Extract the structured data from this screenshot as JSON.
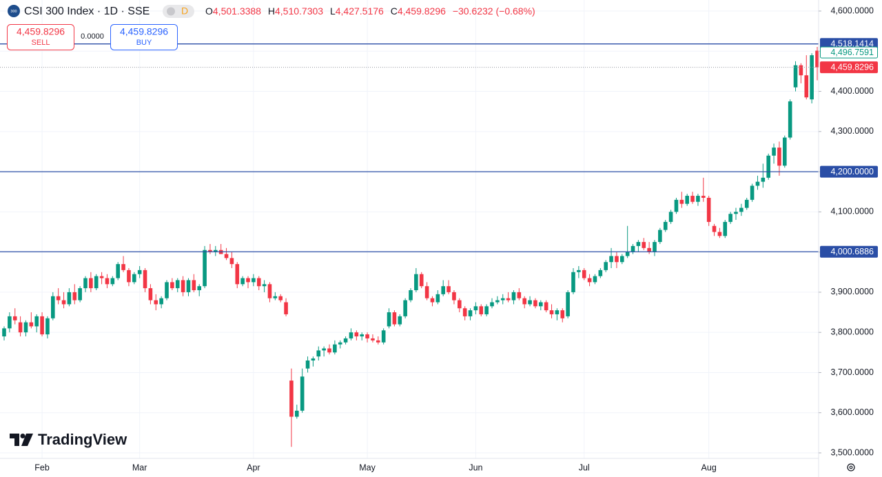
{
  "header": {
    "icon": "300",
    "symbol": "CSI 300 Index · 1D · SSE",
    "badge": "D",
    "o_key": "O",
    "o_val": "4,501.3388",
    "h_key": "H",
    "h_val": "4,510.7303",
    "l_key": "L",
    "l_val": "4,427.5176",
    "c_key": "C",
    "c_val": "4,459.8296",
    "change": "−30.6232 (−0.68%)"
  },
  "trade_panel": {
    "sell_price": "4,459.8296",
    "sell": "SELL",
    "spread": "0.0000",
    "buy_price": "4,459.8296",
    "buy": "BUY"
  },
  "watermark": "TradingView",
  "chart_data": {
    "type": "candlestick",
    "up_color": "#089981",
    "down_color": "#f23645",
    "line_color": "#2a4ea6",
    "ylim": [
      3500,
      4600
    ],
    "yticks": [
      {
        "value": 4600,
        "label": "4,600.0000"
      },
      {
        "value": 4500,
        "label": "4,500.0000"
      },
      {
        "value": 4400,
        "label": "4,400.0000"
      },
      {
        "value": 4300,
        "label": "4,300.0000"
      },
      {
        "value": 4200,
        "label": "4,200.0000"
      },
      {
        "value": 4100,
        "label": "4,100.0000"
      },
      {
        "value": 4000,
        "label": "4,000.0000"
      },
      {
        "value": 3900,
        "label": "3,900.0000"
      },
      {
        "value": 3800,
        "label": "3,800.0000"
      },
      {
        "value": 3700,
        "label": "3,700.0000"
      },
      {
        "value": 3600,
        "label": "3,600.0000"
      },
      {
        "value": 3500,
        "label": "3,500.0000"
      }
    ],
    "grid": true,
    "hlines": [
      {
        "value": 4518.1414,
        "label": "4,518.1414"
      },
      {
        "value": 4200,
        "label": "4,200.0000"
      },
      {
        "value": 4000.6886,
        "label": "4,000.6886"
      }
    ],
    "price_tags": [
      {
        "value": 4496.7591,
        "label": "4,496.7591",
        "style": "outline"
      },
      {
        "value": 4459.8296,
        "label": "4,459.8296",
        "style": "filled"
      }
    ],
    "categories": [
      null,
      null,
      null,
      null,
      null,
      null,
      null,
      "Feb",
      null,
      null,
      null,
      null,
      null,
      null,
      null,
      null,
      null,
      null,
      null,
      null,
      null,
      null,
      null,
      null,
      null,
      "Mar",
      null,
      null,
      null,
      null,
      null,
      null,
      null,
      null,
      null,
      null,
      null,
      null,
      null,
      null,
      null,
      null,
      null,
      null,
      null,
      null,
      "Apr",
      null,
      null,
      null,
      null,
      null,
      null,
      null,
      null,
      null,
      null,
      null,
      null,
      null,
      null,
      null,
      null,
      null,
      null,
      null,
      null,
      "May",
      null,
      null,
      null,
      null,
      null,
      null,
      null,
      null,
      null,
      null,
      null,
      null,
      null,
      null,
      null,
      null,
      null,
      null,
      null,
      "Jun",
      null,
      null,
      null,
      null,
      null,
      null,
      null,
      null,
      null,
      null,
      null,
      null,
      null,
      null,
      null,
      null,
      null,
      null,
      null,
      "Jul",
      null,
      null,
      null,
      null,
      null,
      null,
      null,
      null,
      null,
      null,
      null,
      null,
      null,
      null,
      null,
      null,
      null,
      null,
      null,
      null,
      null,
      null,
      "Aug",
      null,
      null,
      null,
      null,
      null,
      null,
      null,
      null,
      null,
      null,
      null,
      null,
      null,
      null,
      null,
      null,
      null,
      null,
      null,
      null
    ],
    "ohlc": [
      [
        3790,
        3815,
        3780,
        3810
      ],
      [
        3810,
        3850,
        3800,
        3840
      ],
      [
        3840,
        3860,
        3820,
        3830
      ],
      [
        3825,
        3840,
        3790,
        3800
      ],
      [
        3800,
        3830,
        3790,
        3825
      ],
      [
        3825,
        3850,
        3810,
        3815
      ],
      [
        3815,
        3845,
        3800,
        3840
      ],
      [
        3840,
        3850,
        3790,
        3795
      ],
      [
        3795,
        3840,
        3785,
        3835
      ],
      [
        3835,
        3900,
        3830,
        3890
      ],
      [
        3890,
        3910,
        3870,
        3880
      ],
      [
        3880,
        3900,
        3860,
        3870
      ],
      [
        3870,
        3910,
        3865,
        3900
      ],
      [
        3900,
        3920,
        3870,
        3880
      ],
      [
        3880,
        3915,
        3875,
        3910
      ],
      [
        3910,
        3940,
        3900,
        3935
      ],
      [
        3935,
        3950,
        3900,
        3910
      ],
      [
        3910,
        3945,
        3905,
        3940
      ],
      [
        3940,
        3950,
        3920,
        3935
      ],
      [
        3935,
        3945,
        3910,
        3920
      ],
      [
        3920,
        3940,
        3915,
        3935
      ],
      [
        3935,
        3975,
        3930,
        3970
      ],
      [
        3970,
        3990,
        3950,
        3955
      ],
      [
        3955,
        3960,
        3915,
        3925
      ],
      [
        3925,
        3950,
        3920,
        3945
      ],
      [
        3945,
        3965,
        3935,
        3955
      ],
      [
        3955,
        3960,
        3900,
        3910
      ],
      [
        3910,
        3920,
        3870,
        3880
      ],
      [
        3880,
        3895,
        3855,
        3870
      ],
      [
        3870,
        3890,
        3860,
        3885
      ],
      [
        3885,
        3930,
        3880,
        3925
      ],
      [
        3925,
        3935,
        3905,
        3910
      ],
      [
        3910,
        3935,
        3900,
        3930
      ],
      [
        3930,
        3940,
        3890,
        3900
      ],
      [
        3900,
        3935,
        3890,
        3930
      ],
      [
        3930,
        3945,
        3900,
        3905
      ],
      [
        3905,
        3920,
        3890,
        3915
      ],
      [
        3915,
        4015,
        3910,
        4005
      ],
      [
        4005,
        4020,
        3995,
        4000
      ],
      [
        4000,
        4015,
        3990,
        4005
      ],
      [
        4005,
        4020,
        3995,
        3995
      ],
      [
        3995,
        4010,
        3980,
        3985
      ],
      [
        3985,
        4000,
        3960,
        3970
      ],
      [
        3970,
        3975,
        3910,
        3920
      ],
      [
        3920,
        3940,
        3915,
        3935
      ],
      [
        3935,
        3940,
        3910,
        3925
      ],
      [
        3925,
        3945,
        3915,
        3935
      ],
      [
        3935,
        3940,
        3905,
        3915
      ],
      [
        3915,
        3930,
        3900,
        3920
      ],
      [
        3920,
        3925,
        3875,
        3885
      ],
      [
        3885,
        3900,
        3880,
        3890
      ],
      [
        3890,
        3895,
        3875,
        3880
      ],
      [
        3875,
        3885,
        3840,
        3845
      ],
      [
        3680,
        3710,
        3515,
        3590
      ],
      [
        3590,
        3620,
        3585,
        3605
      ],
      [
        3605,
        3710,
        3600,
        3690
      ],
      [
        3710,
        3740,
        3700,
        3730
      ],
      [
        3730,
        3740,
        3715,
        3735
      ],
      [
        3740,
        3765,
        3730,
        3755
      ],
      [
        3755,
        3765,
        3740,
        3760
      ],
      [
        3760,
        3770,
        3745,
        3750
      ],
      [
        3750,
        3780,
        3745,
        3770
      ],
      [
        3770,
        3780,
        3760,
        3775
      ],
      [
        3775,
        3790,
        3770,
        3785
      ],
      [
        3785,
        3810,
        3780,
        3800
      ],
      [
        3800,
        3805,
        3780,
        3790
      ],
      [
        3790,
        3800,
        3780,
        3795
      ],
      [
        3795,
        3800,
        3775,
        3785
      ],
      [
        3785,
        3795,
        3775,
        3780
      ],
      [
        3780,
        3790,
        3770,
        3775
      ],
      [
        3775,
        3810,
        3770,
        3805
      ],
      [
        3815,
        3860,
        3810,
        3850
      ],
      [
        3850,
        3855,
        3815,
        3820
      ],
      [
        3820,
        3845,
        3815,
        3840
      ],
      [
        3840,
        3885,
        3835,
        3880
      ],
      [
        3880,
        3910,
        3875,
        3905
      ],
      [
        3905,
        3960,
        3900,
        3945
      ],
      [
        3945,
        3950,
        3910,
        3915
      ],
      [
        3915,
        3925,
        3880,
        3885
      ],
      [
        3885,
        3890,
        3865,
        3875
      ],
      [
        3875,
        3905,
        3870,
        3895
      ],
      [
        3895,
        3930,
        3890,
        3915
      ],
      [
        3915,
        3930,
        3895,
        3900
      ],
      [
        3900,
        3905,
        3870,
        3880
      ],
      [
        3880,
        3885,
        3850,
        3860
      ],
      [
        3860,
        3865,
        3830,
        3840
      ],
      [
        3840,
        3860,
        3830,
        3855
      ],
      [
        3855,
        3875,
        3845,
        3865
      ],
      [
        3865,
        3870,
        3840,
        3845
      ],
      [
        3845,
        3870,
        3840,
        3865
      ],
      [
        3865,
        3885,
        3860,
        3875
      ],
      [
        3875,
        3890,
        3870,
        3880
      ],
      [
        3880,
        3895,
        3870,
        3885
      ],
      [
        3885,
        3900,
        3875,
        3880
      ],
      [
        3880,
        3905,
        3870,
        3900
      ],
      [
        3900,
        3910,
        3880,
        3885
      ],
      [
        3885,
        3890,
        3860,
        3870
      ],
      [
        3870,
        3890,
        3865,
        3880
      ],
      [
        3880,
        3885,
        3860,
        3865
      ],
      [
        3865,
        3880,
        3855,
        3875
      ],
      [
        3875,
        3880,
        3850,
        3855
      ],
      [
        3855,
        3870,
        3835,
        3845
      ],
      [
        3845,
        3860,
        3830,
        3855
      ],
      [
        3855,
        3860,
        3825,
        3835
      ],
      [
        3840,
        3905,
        3835,
        3900
      ],
      [
        3900,
        3960,
        3895,
        3950
      ],
      [
        3950,
        3965,
        3935,
        3955
      ],
      [
        3955,
        3960,
        3930,
        3935
      ],
      [
        3935,
        3945,
        3915,
        3925
      ],
      [
        3925,
        3945,
        3920,
        3940
      ],
      [
        3940,
        3960,
        3935,
        3955
      ],
      [
        3955,
        3980,
        3950,
        3975
      ],
      [
        3975,
        4010,
        3960,
        3990
      ],
      [
        3990,
        4000,
        3960,
        3975
      ],
      [
        3975,
        3995,
        3970,
        3990
      ],
      [
        3990,
        4065,
        3985,
        4000
      ],
      [
        4000,
        4020,
        3995,
        4015
      ],
      [
        4015,
        4030,
        4000,
        4025
      ],
      [
        4025,
        4035,
        4005,
        4010
      ],
      [
        4010,
        4025,
        3995,
        4000
      ],
      [
        4000,
        4030,
        3990,
        4025
      ],
      [
        4025,
        4060,
        4020,
        4055
      ],
      [
        4055,
        4080,
        4050,
        4075
      ],
      [
        4075,
        4105,
        4070,
        4100
      ],
      [
        4100,
        4135,
        4095,
        4130
      ],
      [
        4130,
        4150,
        4110,
        4120
      ],
      [
        4120,
        4145,
        4115,
        4140
      ],
      [
        4140,
        4150,
        4120,
        4125
      ],
      [
        4125,
        4145,
        4115,
        4140
      ],
      [
        4140,
        4185,
        4125,
        4135
      ],
      [
        4135,
        4140,
        4065,
        4075
      ],
      [
        4065,
        4070,
        4040,
        4050
      ],
      [
        4050,
        4060,
        4035,
        4040
      ],
      [
        4040,
        4080,
        4035,
        4075
      ],
      [
        4075,
        4100,
        4070,
        4095
      ],
      [
        4095,
        4110,
        4080,
        4100
      ],
      [
        4100,
        4120,
        4090,
        4110
      ],
      [
        4110,
        4135,
        4105,
        4130
      ],
      [
        4130,
        4170,
        4125,
        4165
      ],
      [
        4165,
        4190,
        4155,
        4175
      ],
      [
        4175,
        4220,
        4160,
        4185
      ],
      [
        4185,
        4245,
        4180,
        4240
      ],
      [
        4240,
        4270,
        4220,
        4260
      ],
      [
        4260,
        4275,
        4190,
        4215
      ],
      [
        4215,
        4290,
        4210,
        4285
      ],
      [
        4285,
        4380,
        4280,
        4375
      ],
      [
        4410,
        4475,
        4400,
        4465
      ],
      [
        4465,
        4470,
        4420,
        4440
      ],
      [
        4440,
        4490,
        4380,
        4385
      ],
      [
        4380,
        4495,
        4370,
        4490
      ],
      [
        4501.3388,
        4510.7303,
        4427.5176,
        4459.8296
      ]
    ]
  }
}
